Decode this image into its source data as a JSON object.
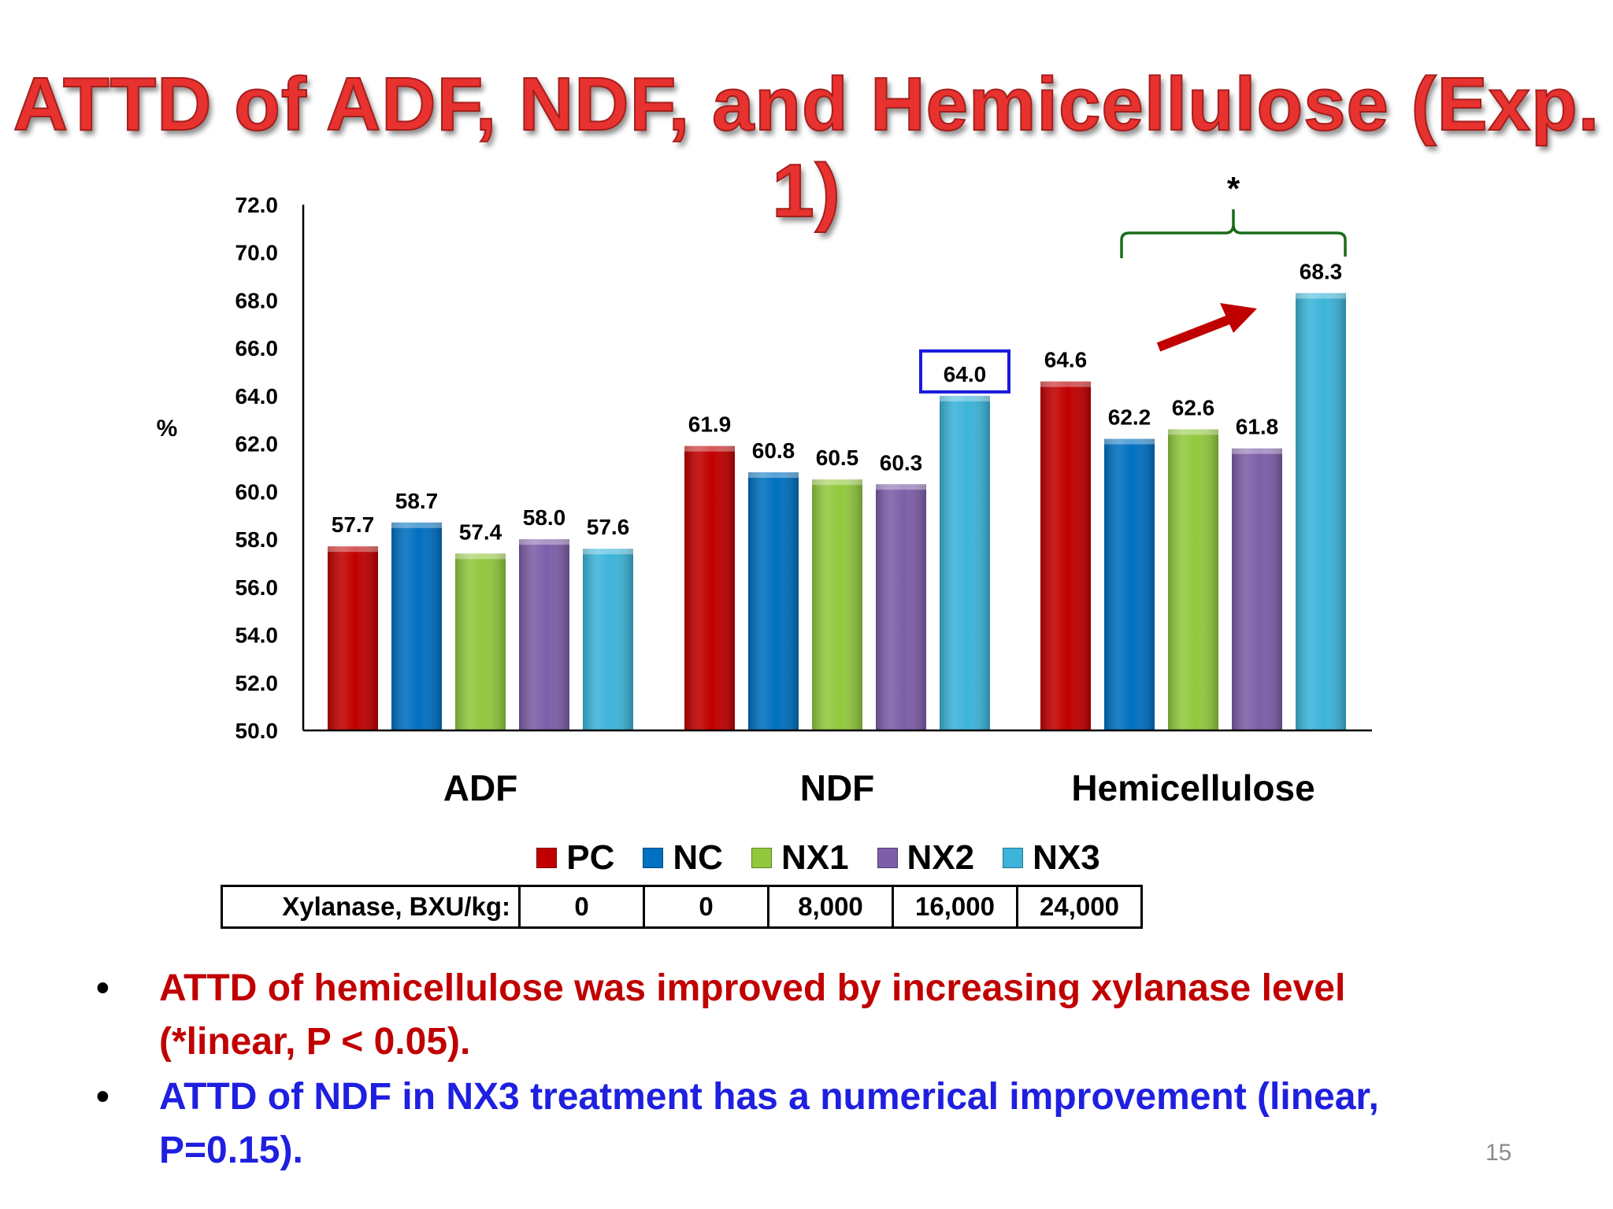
{
  "slide": {
    "title": "ATTD of ADF, NDF, and Hemicellulose (Exp. 1)",
    "page_number": "15"
  },
  "chart_data": {
    "type": "bar",
    "title": "",
    "xlabel": "",
    "ylabel": "%",
    "ylim": [
      50,
      72
    ],
    "yticks": [
      "72.0",
      "70.0",
      "68.0",
      "66.0",
      "64.0",
      "62.0",
      "60.0",
      "58.0",
      "56.0",
      "54.0",
      "52.0",
      "50.0"
    ],
    "categories": [
      "ADF",
      "NDF",
      "Hemicellulose"
    ],
    "series": [
      {
        "name": "PC",
        "color": "#c00000",
        "values": [
          57.7,
          61.9,
          64.6
        ],
        "labels": [
          "57.7",
          "61.9",
          "64.6"
        ]
      },
      {
        "name": "NC",
        "color": "#0070c0",
        "values": [
          58.7,
          60.8,
          62.2
        ],
        "labels": [
          "58.7",
          "60.8",
          "62.2"
        ]
      },
      {
        "name": "NX1",
        "color": "#92c83e",
        "values": [
          57.4,
          60.5,
          62.6
        ],
        "labels": [
          "57.4",
          "60.5",
          "62.6"
        ]
      },
      {
        "name": "NX2",
        "color": "#7d5ea8",
        "values": [
          58.0,
          60.3,
          61.8
        ],
        "labels": [
          "58.0",
          "60.3",
          "61.8"
        ]
      },
      {
        "name": "NX3",
        "color": "#3cb4d9",
        "values": [
          57.6,
          64.0,
          68.3
        ],
        "labels": [
          "57.6",
          "64.0",
          "68.3"
        ]
      }
    ],
    "legend_position": "bottom",
    "grid": false,
    "annotations": {
      "significance_marker": "*",
      "bracket_color": "#1a6b1a",
      "arrow_color": "#c00000",
      "highlight_box_color": "#1a1adb"
    }
  },
  "xylanase_table": {
    "label": "Xylanase, BXU/kg:",
    "values": [
      "0",
      "0",
      "8,000",
      "16,000",
      "24,000"
    ]
  },
  "bullets": [
    {
      "text": "ATTD of hemicellulose was improved by increasing xylanase level (*linear, P < 0.05).",
      "color": "#c00000"
    },
    {
      "text": "ATTD of NDF in NX3 treatment has a numerical improvement (linear, P=0.15).",
      "color": "#1f1fe0"
    }
  ]
}
